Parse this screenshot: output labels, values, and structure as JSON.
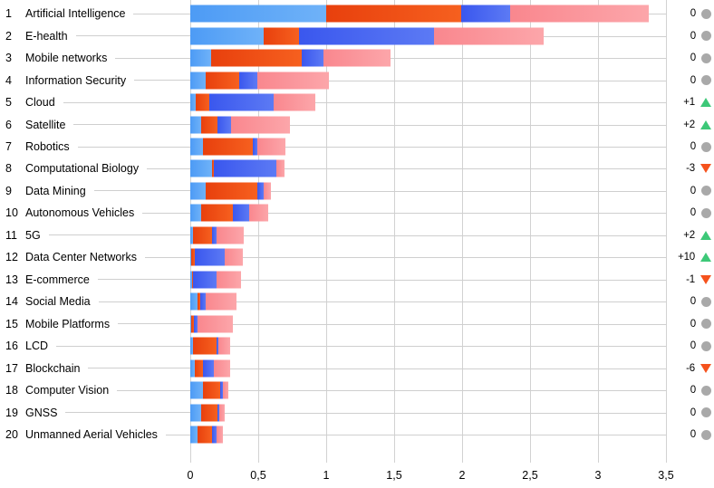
{
  "chart_data": {
    "type": "bar",
    "orientation": "horizontal",
    "stacked": true,
    "title": "",
    "xlabel": "",
    "ylabel": "",
    "xlim": [
      0,
      3.5
    ],
    "grid": true,
    "legend": "none",
    "x_ticks": [
      {
        "label": "0",
        "value": 0
      },
      {
        "label": "0,5",
        "value": 0.5
      },
      {
        "label": "1",
        "value": 1
      },
      {
        "label": "1,5",
        "value": 1.5
      },
      {
        "label": "2",
        "value": 2
      },
      {
        "label": "2,5",
        "value": 2.5
      },
      {
        "label": "3",
        "value": 3
      },
      {
        "label": "3,5",
        "value": 3.5
      }
    ],
    "ranks": [
      "1",
      "2",
      "3",
      "4",
      "5",
      "6",
      "7",
      "8",
      "9",
      "10",
      "11",
      "12",
      "13",
      "14",
      "15",
      "16",
      "17",
      "18",
      "19",
      "20"
    ],
    "categories": [
      "Artificial Intelligence",
      "E-health",
      "Mobile networks",
      "Information Security",
      "Cloud",
      "Satellite",
      "Robotics",
      "Computational Biology",
      "Data Mining",
      "Autonomous Vehicles",
      "5G",
      "Data Center Networks",
      "E-commerce",
      "Social Media",
      "Mobile Platforms",
      "LCD",
      "Blockchain",
      "Computer Vision",
      "GNSS",
      "Unmanned Aerial Vehicles"
    ],
    "series": [
      {
        "name": "segment-lightblue",
        "color": "#57a5f6",
        "gradient": [
          "#4d9bf5",
          "#6fb2f8"
        ],
        "values": [
          1.0,
          0.54,
          0.15,
          0.11,
          0.04,
          0.08,
          0.09,
          0.16,
          0.11,
          0.08,
          0.02,
          0.005,
          0.01,
          0.05,
          0.005,
          0.02,
          0.03,
          0.095,
          0.08,
          0.05
        ]
      },
      {
        "name": "segment-orangered",
        "color": "#ee4711",
        "gradient": [
          "#e8400d",
          "#f6601f"
        ],
        "values": [
          0.99,
          0.26,
          0.67,
          0.25,
          0.1,
          0.12,
          0.37,
          0.01,
          0.38,
          0.23,
          0.14,
          0.025,
          0.01,
          0.02,
          0.02,
          0.17,
          0.065,
          0.125,
          0.12,
          0.11
        ]
      },
      {
        "name": "segment-royalblue",
        "color": "#4463f0",
        "gradient": [
          "#3a57ee",
          "#5c7af4"
        ],
        "values": [
          0.36,
          0.99,
          0.16,
          0.13,
          0.47,
          0.1,
          0.03,
          0.46,
          0.05,
          0.12,
          0.03,
          0.22,
          0.17,
          0.04,
          0.025,
          0.015,
          0.08,
          0.02,
          0.01,
          0.03
        ]
      },
      {
        "name": "segment-pink",
        "color": "#fa969c",
        "gradient": [
          "#f9878e",
          "#fca6aa"
        ],
        "values": [
          1.02,
          0.81,
          0.49,
          0.53,
          0.31,
          0.43,
          0.21,
          0.06,
          0.05,
          0.14,
          0.2,
          0.135,
          0.185,
          0.23,
          0.26,
          0.09,
          0.115,
          0.04,
          0.045,
          0.05
        ]
      }
    ],
    "change": [
      {
        "label": "0",
        "direction": "none"
      },
      {
        "label": "0",
        "direction": "none"
      },
      {
        "label": "0",
        "direction": "none"
      },
      {
        "label": "0",
        "direction": "none"
      },
      {
        "label": "+1",
        "direction": "up"
      },
      {
        "label": "+2",
        "direction": "up"
      },
      {
        "label": "0",
        "direction": "none"
      },
      {
        "label": "-3",
        "direction": "down"
      },
      {
        "label": "0",
        "direction": "none"
      },
      {
        "label": "0",
        "direction": "none"
      },
      {
        "label": "+2",
        "direction": "up"
      },
      {
        "label": "+10",
        "direction": "up"
      },
      {
        "label": "-1",
        "direction": "down"
      },
      {
        "label": "0",
        "direction": "none"
      },
      {
        "label": "0",
        "direction": "none"
      },
      {
        "label": "0",
        "direction": "none"
      },
      {
        "label": "-6",
        "direction": "down"
      },
      {
        "label": "0",
        "direction": "none"
      },
      {
        "label": "0",
        "direction": "none"
      },
      {
        "label": "0",
        "direction": "none"
      }
    ],
    "indicator_colors": {
      "up": "#3dc878",
      "down": "#f5521d",
      "none": "#a9a9a9"
    },
    "gridline_color": "#d2d2d2",
    "leader_line_color": "#cfcfcf"
  }
}
